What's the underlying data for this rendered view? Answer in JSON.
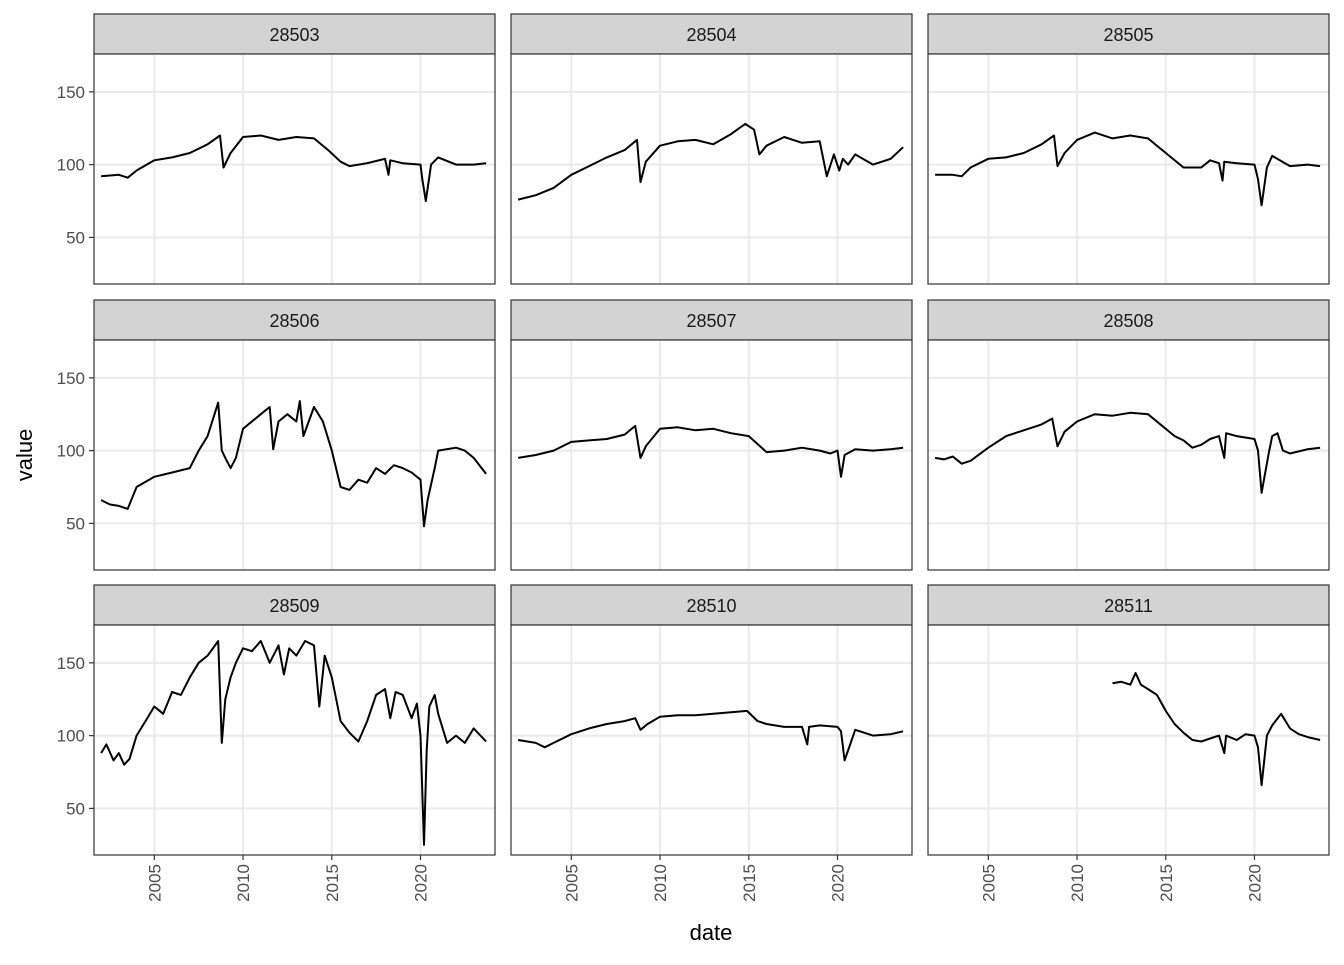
{
  "chart_data": {
    "type": "line",
    "layout": "facet-grid 3x3",
    "xlabel": "date",
    "ylabel": "value",
    "xlim": [
      2001.6,
      2024.2
    ],
    "ylim": [
      18,
      176
    ],
    "x_ticks": [
      2005,
      2010,
      2015,
      2020
    ],
    "x_tick_labels": [
      "2005",
      "2010",
      "2015",
      "2020"
    ],
    "y_ticks": [
      50,
      100,
      150
    ],
    "y_tick_labels": [
      "50",
      "100",
      "150"
    ],
    "grid": true,
    "legend": "none",
    "colors": {
      "line": "#000000",
      "strip": "#d3d3d3",
      "grid": "#ebebeb",
      "border": "#333333"
    },
    "panels": [
      {
        "title": "28503",
        "x": [
          2002.0,
          2003.0,
          2003.5,
          2004.0,
          2005.0,
          2006.0,
          2007.0,
          2008.0,
          2008.7,
          2008.9,
          2009.3,
          2010.0,
          2011.0,
          2012.0,
          2013.0,
          2014.0,
          2014.8,
          2015.5,
          2016.0,
          2017.0,
          2018.0,
          2018.2,
          2018.3,
          2019.0,
          2020.0,
          2020.1,
          2020.3,
          2020.6,
          2021.0,
          2022.0,
          2023.0,
          2023.7
        ],
        "y": [
          92,
          93,
          91,
          96,
          103,
          105,
          108,
          114,
          120,
          98,
          108,
          119,
          120,
          117,
          119,
          118,
          110,
          102,
          99,
          101,
          104,
          93,
          103,
          101,
          100,
          90,
          75,
          100,
          105,
          100,
          100,
          101
        ]
      },
      {
        "title": "28504",
        "x": [
          2002.0,
          2003.0,
          2004.0,
          2005.0,
          2006.0,
          2007.0,
          2008.0,
          2008.7,
          2008.9,
          2009.2,
          2010.0,
          2011.0,
          2012.0,
          2013.0,
          2014.0,
          2014.8,
          2015.3,
          2015.6,
          2016.0,
          2017.0,
          2018.0,
          2019.0,
          2019.4,
          2019.8,
          2020.1,
          2020.3,
          2020.6,
          2021.0,
          2022.0,
          2023.0,
          2023.7
        ],
        "y": [
          76,
          79,
          84,
          93,
          99,
          105,
          110,
          117,
          88,
          102,
          113,
          116,
          117,
          114,
          121,
          128,
          124,
          107,
          113,
          119,
          115,
          116,
          92,
          107,
          96,
          104,
          100,
          107,
          100,
          104,
          112
        ]
      },
      {
        "title": "28505",
        "x": [
          2002.0,
          2003.0,
          2003.5,
          2004.0,
          2005.0,
          2006.0,
          2007.0,
          2008.0,
          2008.7,
          2008.9,
          2009.3,
          2010.0,
          2011.0,
          2012.0,
          2013.0,
          2014.0,
          2015.0,
          2016.0,
          2017.0,
          2017.5,
          2018.0,
          2018.2,
          2018.3,
          2019.0,
          2020.0,
          2020.2,
          2020.4,
          2020.7,
          2021.0,
          2022.0,
          2023.0,
          2023.7
        ],
        "y": [
          93,
          93,
          92,
          98,
          104,
          105,
          108,
          114,
          120,
          99,
          108,
          117,
          122,
          118,
          120,
          118,
          108,
          98,
          98,
          103,
          101,
          89,
          102,
          101,
          100,
          90,
          72,
          98,
          106,
          99,
          100,
          99
        ]
      },
      {
        "title": "28506",
        "x": [
          2002.0,
          2002.5,
          2003.0,
          2003.5,
          2004.0,
          2005.0,
          2006.0,
          2007.0,
          2007.5,
          2008.0,
          2008.6,
          2008.8,
          2009.0,
          2009.3,
          2009.6,
          2010.0,
          2011.0,
          2011.5,
          2011.7,
          2012.0,
          2012.5,
          2013.0,
          2013.2,
          2013.4,
          2014.0,
          2014.5,
          2015.0,
          2015.5,
          2016.0,
          2016.5,
          2017.0,
          2017.5,
          2018.0,
          2018.5,
          2019.0,
          2019.5,
          2020.0,
          2020.2,
          2020.4,
          2020.8,
          2021.0,
          2022.0,
          2022.5,
          2023.0,
          2023.7
        ],
        "y": [
          66,
          63,
          62,
          60,
          75,
          82,
          85,
          88,
          100,
          110,
          133,
          100,
          95,
          88,
          95,
          115,
          125,
          130,
          101,
          120,
          125,
          120,
          134,
          110,
          130,
          120,
          100,
          75,
          73,
          80,
          78,
          88,
          84,
          90,
          88,
          85,
          80,
          48,
          66,
          88,
          100,
          102,
          100,
          95,
          84
        ]
      },
      {
        "title": "28507",
        "x": [
          2002.0,
          2003.0,
          2004.0,
          2005.0,
          2006.0,
          2007.0,
          2008.0,
          2008.6,
          2008.9,
          2009.2,
          2010.0,
          2011.0,
          2012.0,
          2013.0,
          2014.0,
          2015.0,
          2016.0,
          2017.0,
          2018.0,
          2019.0,
          2019.6,
          2020.0,
          2020.2,
          2020.4,
          2021.0,
          2022.0,
          2023.0,
          2023.7
        ],
        "y": [
          95,
          97,
          100,
          106,
          107,
          108,
          111,
          117,
          95,
          103,
          115,
          116,
          114,
          115,
          112,
          110,
          99,
          100,
          102,
          100,
          98,
          100,
          82,
          97,
          101,
          100,
          101,
          102
        ]
      },
      {
        "title": "28508",
        "x": [
          2002.0,
          2002.5,
          2003.0,
          2003.5,
          2004.0,
          2005.0,
          2006.0,
          2007.0,
          2008.0,
          2008.6,
          2008.9,
          2009.3,
          2010.0,
          2011.0,
          2012.0,
          2013.0,
          2014.0,
          2014.8,
          2015.5,
          2016.0,
          2016.5,
          2017.0,
          2017.5,
          2018.0,
          2018.3,
          2018.4,
          2019.0,
          2020.0,
          2020.2,
          2020.4,
          2020.8,
          2021.0,
          2021.3,
          2021.6,
          2022.0,
          2023.0,
          2023.7
        ],
        "y": [
          95,
          94,
          96,
          91,
          93,
          102,
          110,
          114,
          118,
          122,
          103,
          113,
          120,
          125,
          124,
          126,
          125,
          117,
          110,
          107,
          102,
          104,
          108,
          110,
          95,
          112,
          110,
          108,
          100,
          71,
          98,
          110,
          112,
          100,
          98,
          101,
          102
        ]
      },
      {
        "title": "28509",
        "x": [
          2002.0,
          2002.3,
          2002.7,
          2003.0,
          2003.3,
          2003.6,
          2004.0,
          2004.5,
          2005.0,
          2005.5,
          2006.0,
          2006.5,
          2007.0,
          2007.5,
          2008.0,
          2008.6,
          2008.8,
          2009.0,
          2009.3,
          2009.6,
          2010.0,
          2010.5,
          2011.0,
          2011.5,
          2012.0,
          2012.3,
          2012.6,
          2013.0,
          2013.5,
          2014.0,
          2014.3,
          2014.6,
          2015.0,
          2015.5,
          2016.0,
          2016.5,
          2017.0,
          2017.5,
          2018.0,
          2018.3,
          2018.6,
          2019.0,
          2019.5,
          2019.8,
          2020.0,
          2020.2,
          2020.35,
          2020.5,
          2020.8,
          2021.0,
          2021.5,
          2022.0,
          2022.5,
          2023.0,
          2023.7
        ],
        "y": [
          88,
          94,
          83,
          88,
          80,
          84,
          100,
          110,
          120,
          115,
          130,
          128,
          140,
          150,
          155,
          165,
          95,
          125,
          140,
          150,
          160,
          158,
          165,
          150,
          162,
          142,
          160,
          155,
          165,
          162,
          120,
          155,
          140,
          110,
          102,
          96,
          110,
          128,
          132,
          112,
          130,
          128,
          112,
          122,
          100,
          25,
          90,
          120,
          128,
          115,
          95,
          100,
          95,
          105,
          96
        ]
      },
      {
        "title": "28510",
        "x": [
          2002.0,
          2003.0,
          2003.5,
          2004.0,
          2005.0,
          2006.0,
          2007.0,
          2008.0,
          2008.6,
          2008.9,
          2009.3,
          2010.0,
          2011.0,
          2012.0,
          2013.0,
          2014.0,
          2014.9,
          2015.5,
          2016.0,
          2017.0,
          2018.0,
          2018.3,
          2018.4,
          2019.0,
          2020.0,
          2020.2,
          2020.4,
          2020.8,
          2021.0,
          2022.0,
          2023.0,
          2023.7
        ],
        "y": [
          97,
          95,
          92,
          95,
          101,
          105,
          108,
          110,
          112,
          104,
          108,
          113,
          114,
          114,
          115,
          116,
          117,
          110,
          108,
          106,
          106,
          94,
          106,
          107,
          106,
          103,
          83,
          97,
          104,
          100,
          101,
          103
        ]
      },
      {
        "title": "28511",
        "x": [
          2012.0,
          2012.5,
          2013.0,
          2013.3,
          2013.6,
          2014.0,
          2014.5,
          2015.0,
          2015.5,
          2016.0,
          2016.5,
          2017.0,
          2017.5,
          2018.0,
          2018.3,
          2018.4,
          2019.0,
          2019.5,
          2020.0,
          2020.2,
          2020.4,
          2020.7,
          2021.0,
          2021.5,
          2022.0,
          2022.5,
          2023.0,
          2023.7
        ],
        "y": [
          136,
          137,
          135,
          143,
          135,
          132,
          128,
          117,
          108,
          102,
          97,
          96,
          98,
          100,
          88,
          100,
          97,
          101,
          100,
          92,
          66,
          100,
          107,
          115,
          105,
          101,
          99,
          97
        ]
      }
    ]
  }
}
